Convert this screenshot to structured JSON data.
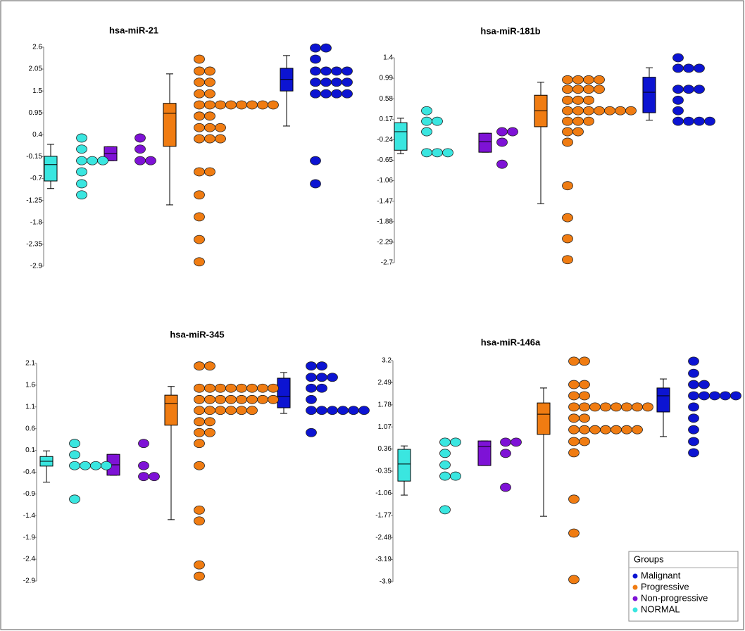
{
  "legend": {
    "title": "Groups",
    "position": "lower right",
    "entries": [
      {
        "name": "Malignant",
        "color": "#0c14d2"
      },
      {
        "name": "Progressive",
        "color": "#f07c12"
      },
      {
        "name": "Non-progressive",
        "color": "#7e12d6"
      },
      {
        "name": "NORMAL",
        "color": "#3ae6e0"
      }
    ]
  },
  "chart_data": [
    {
      "type": "box-dot",
      "title": "hsa-miR-21",
      "ylim": [
        -2.9,
        2.6
      ],
      "yticks": [
        2.6,
        2.05,
        1.5,
        0.95,
        0.4,
        -0.15,
        -0.7,
        -1.25,
        -1.8,
        -2.35,
        -2.9
      ],
      "series": [
        {
          "box": [
            0.62,
            1.5,
            1.79,
            2.07,
            2.39
          ],
          "points": [
            2.58,
            2.58,
            2.3,
            2.0,
            2.0,
            2.0,
            2.0,
            1.72,
            1.72,
            1.72,
            1.72,
            1.43,
            1.43,
            1.43,
            1.43,
            -0.25,
            -0.83
          ]
        },
        {
          "box": [
            -1.36,
            0.11,
            0.94,
            1.19,
            1.93
          ],
          "points": [
            2.3,
            2.0,
            2.0,
            1.72,
            1.72,
            1.43,
            1.43,
            1.15,
            1.15,
            1.15,
            1.15,
            1.15,
            1.15,
            1.15,
            1.15,
            0.87,
            0.87,
            0.58,
            0.58,
            0.58,
            0.3,
            0.3,
            0.3,
            -0.53,
            -0.53,
            -1.11,
            -1.66,
            -2.23,
            -2.79
          ]
        },
        {
          "box": [
            -0.25,
            -0.25,
            -0.07,
            0.1,
            0.1
          ],
          "points": [
            0.32,
            0.04,
            -0.25,
            -0.25
          ]
        },
        {
          "box": [
            -0.95,
            -0.76,
            -0.35,
            -0.14,
            0.16
          ],
          "points": [
            0.32,
            0.04,
            -0.25,
            -0.25,
            -0.25,
            -0.53,
            -0.83,
            -1.11
          ]
        }
      ]
    },
    {
      "type": "box-dot",
      "title": "hsa-miR-181b",
      "ylim": [
        -2.7,
        1.4
      ],
      "yticks": [
        1.4,
        0.99,
        0.58,
        0.17,
        -0.24,
        -0.65,
        -1.06,
        -1.47,
        -1.88,
        -2.29,
        -2.7
      ],
      "series": [
        {
          "box": [
            0.15,
            0.3,
            0.71,
            1.01,
            1.2
          ],
          "points": [
            1.4,
            1.19,
            1.19,
            1.19,
            0.77,
            0.77,
            0.77,
            0.55,
            0.34,
            0.13,
            0.13,
            0.13,
            0.13
          ]
        },
        {
          "box": [
            -1.52,
            0.02,
            0.34,
            0.65,
            0.91
          ],
          "points": [
            0.96,
            0.96,
            0.96,
            0.96,
            0.77,
            0.77,
            0.77,
            0.77,
            0.55,
            0.55,
            0.55,
            0.34,
            0.34,
            0.34,
            0.34,
            0.34,
            0.34,
            0.34,
            0.13,
            0.13,
            0.13,
            -0.08,
            -0.08,
            -0.29,
            -1.16,
            -1.8,
            -2.22,
            -2.64
          ]
        },
        {
          "box": [
            -0.49,
            -0.49,
            -0.28,
            -0.11,
            -0.11
          ],
          "points": [
            -0.08,
            -0.08,
            -0.29,
            -0.73
          ]
        },
        {
          "box": [
            -0.52,
            -0.45,
            -0.08,
            0.1,
            0.19
          ],
          "points": [
            0.34,
            0.13,
            0.13,
            -0.08,
            -0.5,
            -0.5,
            -0.5
          ]
        }
      ]
    },
    {
      "type": "box-dot",
      "title": "hsa-miR-345",
      "ylim": [
        -2.9,
        2.1
      ],
      "yticks": [
        2.1,
        1.6,
        1.1,
        0.6,
        0.1,
        -0.4,
        -0.9,
        -1.4,
        -1.9,
        -2.4,
        -2.9
      ],
      "series": [
        {
          "box": [
            0.95,
            1.08,
            1.34,
            1.76,
            1.89
          ],
          "points": [
            2.04,
            2.04,
            1.78,
            1.78,
            1.78,
            1.53,
            1.53,
            1.27,
            1.02,
            1.02,
            1.02,
            1.02,
            1.02,
            1.02,
            0.51
          ]
        },
        {
          "box": [
            -1.49,
            0.68,
            1.18,
            1.37,
            1.57
          ],
          "points": [
            2.04,
            2.04,
            1.53,
            1.53,
            1.53,
            1.53,
            1.53,
            1.53,
            1.53,
            1.53,
            1.27,
            1.27,
            1.27,
            1.27,
            1.27,
            1.27,
            1.27,
            1.27,
            1.02,
            1.02,
            1.02,
            1.02,
            1.02,
            1.02,
            0.76,
            0.76,
            0.51,
            0.51,
            0.26,
            -0.25,
            -1.27,
            -1.52,
            -2.53,
            -2.79
          ]
        },
        {
          "box": [
            -0.47,
            -0.47,
            -0.23,
            0.01,
            0.01
          ],
          "points": [
            0.26,
            -0.25,
            -0.5,
            -0.5
          ]
        },
        {
          "box": [
            -0.63,
            -0.26,
            -0.15,
            -0.04,
            0.09
          ],
          "points": [
            0.26,
            0.0,
            -0.25,
            -0.25,
            -0.25,
            -0.25,
            -1.02
          ]
        }
      ]
    },
    {
      "type": "box-dot",
      "title": "hsa-miR-146a",
      "ylim": [
        -3.9,
        3.2
      ],
      "yticks": [
        3.2,
        2.49,
        1.78,
        1.07,
        0.36,
        -0.35,
        -1.06,
        -1.77,
        -2.48,
        -3.19,
        -3.9
      ],
      "series": [
        {
          "box": [
            0.76,
            1.55,
            2.07,
            2.32,
            2.61
          ],
          "points": [
            3.18,
            2.79,
            2.43,
            2.43,
            2.07,
            2.07,
            2.07,
            2.07,
            2.07,
            1.71,
            1.35,
            0.98,
            0.6,
            0.24
          ]
        },
        {
          "box": [
            -1.8,
            0.83,
            1.48,
            1.84,
            2.32
          ],
          "points": [
            3.18,
            3.18,
            2.43,
            2.43,
            2.07,
            2.07,
            1.71,
            1.71,
            1.71,
            1.71,
            1.71,
            1.71,
            1.71,
            1.71,
            1.35,
            1.35,
            0.98,
            0.98,
            0.98,
            0.98,
            0.98,
            0.98,
            0.98,
            0.6,
            0.6,
            0.24,
            -1.25,
            -2.34,
            -3.83
          ]
        },
        {
          "box": [
            -0.17,
            -0.17,
            0.44,
            0.62,
            0.62
          ],
          "points": [
            0.58,
            0.58,
            0.22,
            -0.87
          ]
        },
        {
          "box": [
            -1.12,
            -0.67,
            -0.12,
            0.35,
            0.46
          ],
          "points": [
            0.58,
            0.58,
            0.22,
            -0.15,
            -0.51,
            -0.51,
            -1.59
          ]
        }
      ]
    }
  ]
}
